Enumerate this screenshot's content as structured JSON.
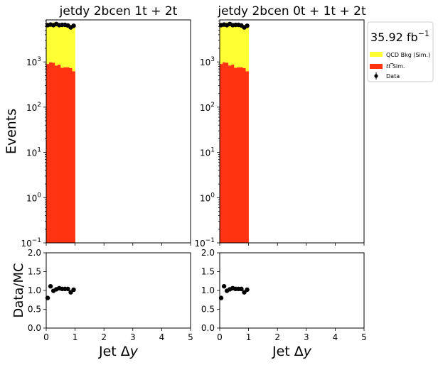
{
  "lumi_label": "35.92 fb",
  "lumi_exp": "−1",
  "legend": {
    "qcd": "QCD Bkg (Sim.)",
    "ttbar_t": "t",
    "ttbar_rest": " Sim.",
    "data": "Data"
  },
  "colors": {
    "qcd": "#ffff33",
    "ttbar": "#ff3311",
    "data": "#000000"
  },
  "chart_data": [
    {
      "type": "bar",
      "stacked": true,
      "title": "jetdy  2bcen 1t + 2t",
      "ylabel": "Events",
      "xlabel_main": "Jet Δ",
      "xlabel_var": "y",
      "log_y": true,
      "xlim": [
        0,
        5
      ],
      "ylim": [
        0.1,
        8500
      ],
      "y_ticks": [
        {
          "base": "10",
          "exp": "−1"
        },
        {
          "base": "10",
          "exp": "0"
        },
        {
          "base": "10",
          "exp": "1"
        },
        {
          "base": "10",
          "exp": "2"
        },
        {
          "base": "10",
          "exp": "3"
        }
      ],
      "bin_edges": [
        0,
        0.1,
        0.2,
        0.3,
        0.4,
        0.5,
        0.6,
        0.7,
        0.8,
        0.9,
        1.0
      ],
      "series": [
        {
          "name": "t Sim.",
          "values": [
            900,
            980,
            960,
            830,
            870,
            740,
            760,
            760,
            730,
            620
          ]
        },
        {
          "name": "QCD Bkg (Sim.)",
          "values": [
            6400,
            6300,
            6500,
            6600,
            6200,
            6300,
            6300,
            6100,
            5800,
            5900
          ]
        },
        {
          "name": "Data",
          "values": [
            6500,
            6700,
            6500,
            6900,
            6500,
            6600,
            6600,
            6400,
            5800,
            6300
          ]
        }
      ],
      "ratio": {
        "ylabel": "Data/MC",
        "ylim": [
          0,
          2
        ],
        "y_ticks": [
          "0.0",
          "0.5",
          "1.0",
          "1.5",
          "2.0"
        ],
        "x_ticks": [
          "0",
          "1",
          "2",
          "3",
          "4",
          "5"
        ],
        "values": [
          0.8,
          1.11,
          0.99,
          1.03,
          1.06,
          1.04,
          1.04,
          1.04,
          0.95,
          1.02
        ]
      }
    },
    {
      "type": "bar",
      "stacked": true,
      "title": "jetdy  2bcen 0t + 1t + 2t",
      "ylabel": "",
      "xlabel_main": "Jet Δ",
      "xlabel_var": "y",
      "log_y": true,
      "xlim": [
        0,
        5
      ],
      "ylim": [
        0.1,
        8500
      ],
      "y_ticks": [
        {
          "base": "10",
          "exp": "−1"
        },
        {
          "base": "10",
          "exp": "0"
        },
        {
          "base": "10",
          "exp": "1"
        },
        {
          "base": "10",
          "exp": "2"
        },
        {
          "base": "10",
          "exp": "3"
        }
      ],
      "bin_edges": [
        0,
        0.1,
        0.2,
        0.3,
        0.4,
        0.5,
        0.6,
        0.7,
        0.8,
        0.9,
        1.0
      ],
      "series": [
        {
          "name": "t Sim.",
          "values": [
            900,
            980,
            960,
            830,
            870,
            740,
            760,
            760,
            730,
            620
          ]
        },
        {
          "name": "QCD Bkg (Sim.)",
          "values": [
            6400,
            6300,
            6500,
            6600,
            6200,
            6300,
            6300,
            6100,
            5800,
            5900
          ]
        },
        {
          "name": "Data",
          "values": [
            6500,
            6700,
            6500,
            6900,
            6500,
            6600,
            6600,
            6400,
            5800,
            6300
          ]
        }
      ],
      "ratio": {
        "ylabel": "",
        "ylim": [
          0,
          2
        ],
        "y_ticks": [
          "0.0",
          "0.5",
          "1.0",
          "1.5",
          "2.0"
        ],
        "x_ticks": [
          "0",
          "1",
          "2",
          "3",
          "4",
          "5"
        ],
        "values": [
          0.8,
          1.11,
          0.99,
          1.03,
          1.06,
          1.04,
          1.04,
          1.04,
          0.95,
          1.02
        ]
      }
    }
  ]
}
